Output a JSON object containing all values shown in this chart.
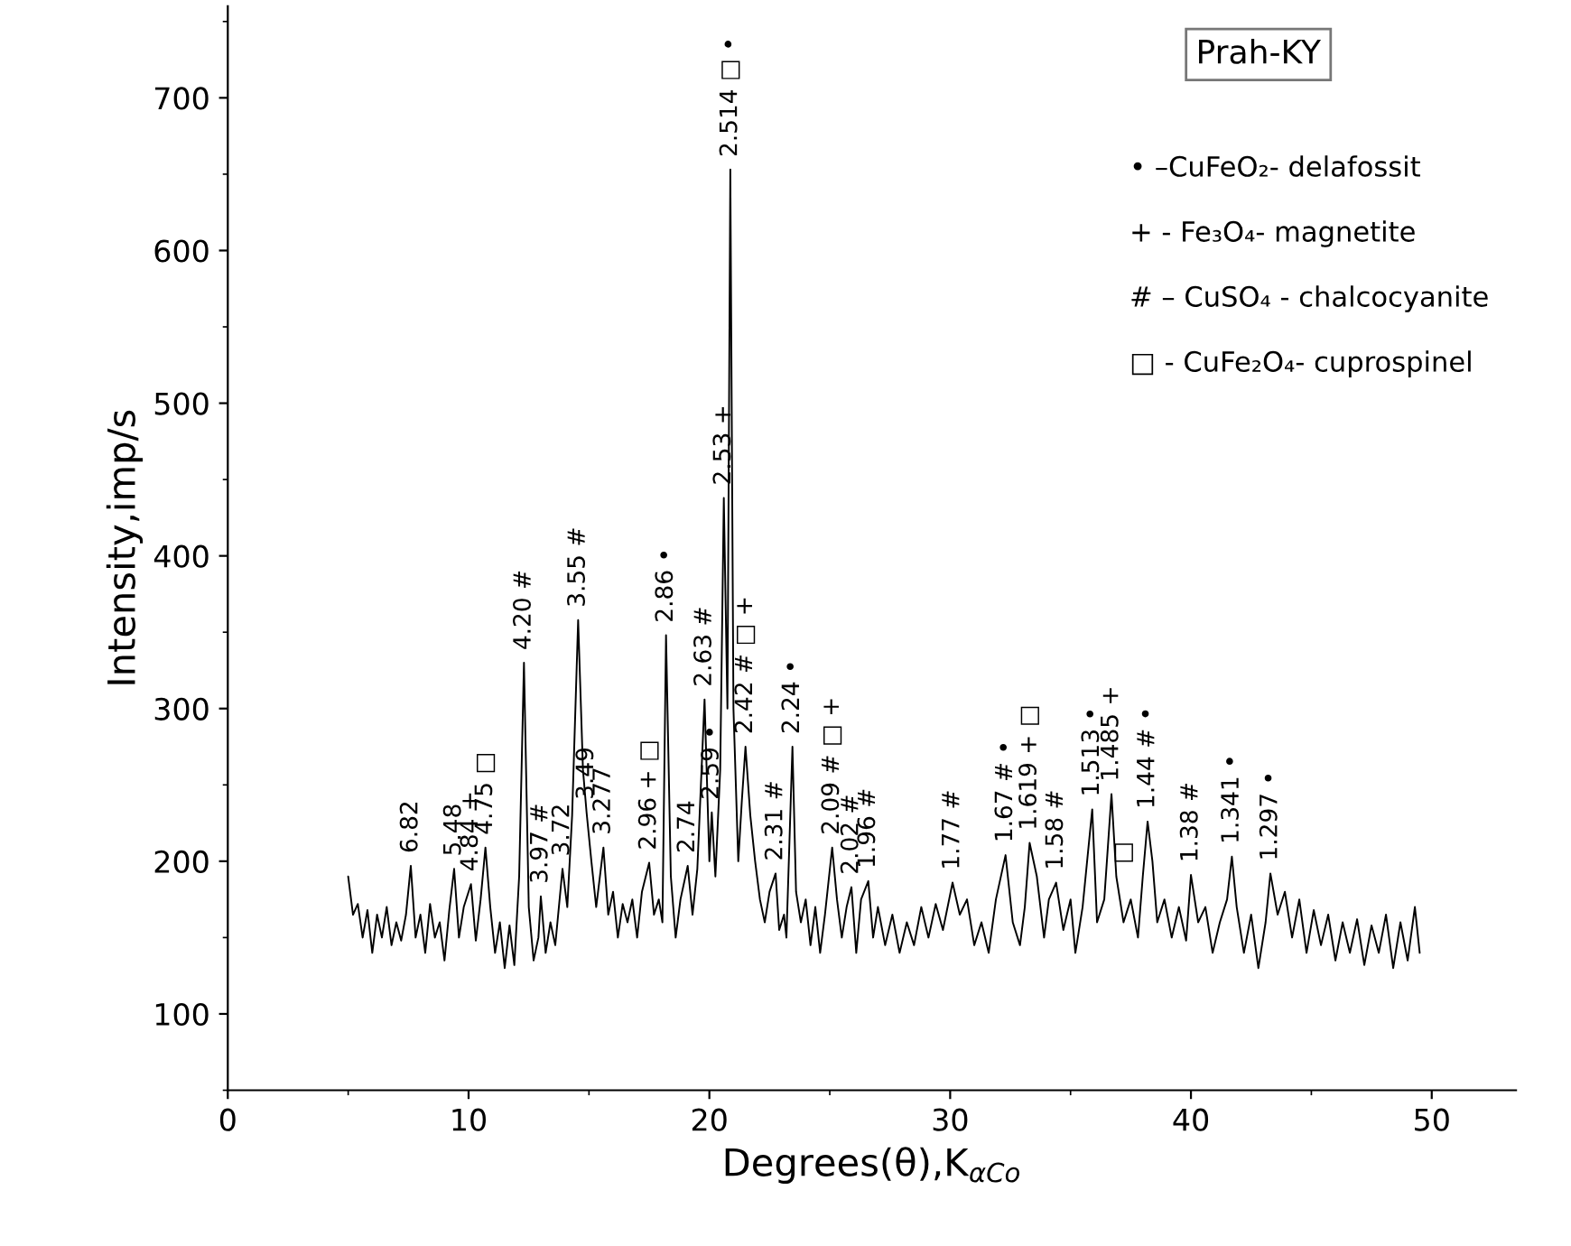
{
  "chart_data": {
    "type": "line",
    "title": "Prah-KY",
    "xlabel": "Degrees(θ),K$_{αCo}$",
    "ylabel": "Intensity,imp/s",
    "xlim": [
      0,
      53.5
    ],
    "ylim": [
      50,
      760
    ],
    "xticks": [
      0,
      10,
      20,
      30,
      40,
      50
    ],
    "yticks": [
      100,
      200,
      300,
      400,
      500,
      600,
      700
    ],
    "grid": false,
    "legend": false,
    "marker": "none",
    "line_style": "solid",
    "series": [
      {
        "color": "#000000",
        "x": [
          5.0,
          5.2,
          5.4,
          5.6,
          5.8,
          6.0,
          6.2,
          6.4,
          6.6,
          6.8,
          7.0,
          7.2,
          7.4,
          7.6,
          7.8,
          8.0,
          8.2,
          8.4,
          8.6,
          8.8,
          9.0,
          9.2,
          9.4,
          9.6,
          9.8,
          10.1,
          10.3,
          10.5,
          10.7,
          10.9,
          11.1,
          11.3,
          11.5,
          11.7,
          11.9,
          12.1,
          12.3,
          12.5,
          12.7,
          12.9,
          13.0,
          13.2,
          13.4,
          13.6,
          13.9,
          14.1,
          14.3,
          14.55,
          14.75,
          14.9,
          15.1,
          15.3,
          15.6,
          15.8,
          16.0,
          16.2,
          16.4,
          16.6,
          16.8,
          17.0,
          17.2,
          17.5,
          17.7,
          17.9,
          18.05,
          18.2,
          18.4,
          18.6,
          18.8,
          19.1,
          19.3,
          19.5,
          19.8,
          20.0,
          20.1,
          20.25,
          20.45,
          20.6,
          20.75,
          20.87,
          21.0,
          21.2,
          21.35,
          21.5,
          21.7,
          21.9,
          22.1,
          22.3,
          22.5,
          22.75,
          22.9,
          23.1,
          23.2,
          23.45,
          23.6,
          23.8,
          24.0,
          24.2,
          24.4,
          24.6,
          24.8,
          25.1,
          25.3,
          25.5,
          25.7,
          25.9,
          26.1,
          26.3,
          26.6,
          26.8,
          27.0,
          27.3,
          27.6,
          27.9,
          28.2,
          28.5,
          28.8,
          29.1,
          29.4,
          29.7,
          30.1,
          30.4,
          30.7,
          31.0,
          31.3,
          31.6,
          31.9,
          32.3,
          32.6,
          32.9,
          33.1,
          33.3,
          33.6,
          33.9,
          34.1,
          34.4,
          34.7,
          35.0,
          35.2,
          35.5,
          35.9,
          36.1,
          36.4,
          36.7,
          36.9,
          37.2,
          37.5,
          37.8,
          38.0,
          38.2,
          38.4,
          38.6,
          38.9,
          39.2,
          39.5,
          39.8,
          40.0,
          40.3,
          40.6,
          40.9,
          41.2,
          41.5,
          41.7,
          41.9,
          42.2,
          42.5,
          42.8,
          43.1,
          43.3,
          43.6,
          43.9,
          44.2,
          44.5,
          44.8,
          45.1,
          45.4,
          45.7,
          46.0,
          46.3,
          46.6,
          46.9,
          47.2,
          47.5,
          47.8,
          48.1,
          48.4,
          48.7,
          49.0,
          49.3,
          49.5
        ],
        "values": [
          190,
          165,
          172,
          150,
          168,
          140,
          165,
          150,
          170,
          145,
          160,
          148,
          165,
          197,
          150,
          165,
          140,
          172,
          150,
          160,
          135,
          168,
          195,
          150,
          170,
          185,
          148,
          175,
          209,
          170,
          140,
          160,
          130,
          158,
          132,
          190,
          330,
          170,
          135,
          150,
          177,
          140,
          160,
          145,
          195,
          170,
          230,
          358,
          260,
          232,
          200,
          170,
          209,
          165,
          180,
          150,
          172,
          160,
          175,
          150,
          180,
          199,
          165,
          175,
          160,
          348,
          190,
          150,
          175,
          197,
          165,
          195,
          306,
          200,
          232,
          190,
          260,
          438,
          300,
          653,
          300,
          200,
          240,
          275,
          230,
          200,
          175,
          160,
          180,
          192,
          155,
          165,
          150,
          275,
          180,
          160,
          175,
          145,
          170,
          140,
          165,
          209,
          175,
          150,
          170,
          183,
          140,
          175,
          187,
          150,
          170,
          145,
          165,
          140,
          160,
          145,
          170,
          150,
          172,
          155,
          186,
          165,
          175,
          145,
          160,
          140,
          175,
          204,
          160,
          145,
          170,
          212,
          190,
          150,
          175,
          186,
          155,
          175,
          140,
          170,
          234,
          160,
          175,
          244,
          190,
          160,
          175,
          150,
          190,
          226,
          200,
          160,
          175,
          150,
          170,
          148,
          191,
          160,
          170,
          140,
          160,
          175,
          203,
          170,
          140,
          165,
          130,
          160,
          192,
          165,
          180,
          150,
          175,
          140,
          168,
          145,
          165,
          135,
          160,
          140,
          162,
          132,
          158,
          140,
          165,
          130,
          160,
          135,
          170,
          140
        ]
      }
    ],
    "annotations": [
      {
        "text": "6.82",
        "x": 7.6,
        "y": 197
      },
      {
        "text": "5.48",
        "x": 9.4,
        "y": 195
      },
      {
        "text": "4.84 +",
        "x": 10.1,
        "y": 185
      },
      {
        "text": "4.75 □",
        "x": 10.7,
        "y": 209
      },
      {
        "text": "4.20 #",
        "x": 12.3,
        "y": 330
      },
      {
        "text": "3.97 #",
        "x": 13.0,
        "y": 177
      },
      {
        "text": "3.72",
        "x": 13.9,
        "y": 195
      },
      {
        "text": "3.55 #",
        "x": 14.55,
        "y": 358
      },
      {
        "text": "3.49",
        "x": 14.9,
        "y": 232
      },
      {
        "text": "3.277",
        "x": 15.6,
        "y": 209
      },
      {
        "text": "2.96 + □",
        "x": 17.5,
        "y": 199
      },
      {
        "text": "2.86 •",
        "x": 18.2,
        "y": 348
      },
      {
        "text": "2.74",
        "x": 19.1,
        "y": 197
      },
      {
        "text": "2.63 #",
        "x": 19.8,
        "y": 306
      },
      {
        "text": "2.59 •",
        "x": 20.1,
        "y": 232
      },
      {
        "text": "2.53 +",
        "x": 20.6,
        "y": 438
      },
      {
        "text": "2.514 □ •",
        "x": 20.87,
        "y": 653
      },
      {
        "text": "2.42 # □ +",
        "x": 21.5,
        "y": 275
      },
      {
        "text": "2.31 #",
        "x": 22.75,
        "y": 192
      },
      {
        "text": "2.24 •",
        "x": 23.45,
        "y": 275
      },
      {
        "text": "2.09 # □ +",
        "x": 25.1,
        "y": 209
      },
      {
        "text": "2.02 #",
        "x": 25.9,
        "y": 183
      },
      {
        "text": "1.96 #",
        "x": 26.6,
        "y": 187
      },
      {
        "text": "1.77 #",
        "x": 30.1,
        "y": 186
      },
      {
        "text": "1.67 # •",
        "x": 32.3,
        "y": 204
      },
      {
        "text": "1.619 + □",
        "x": 33.3,
        "y": 212
      },
      {
        "text": "1.58 #",
        "x": 34.4,
        "y": 186
      },
      {
        "text": "1.513 •",
        "x": 35.9,
        "y": 234
      },
      {
        "text": "1.485 +",
        "x": 36.7,
        "y": 244
      },
      {
        "text": "□",
        "x": 37.2,
        "y": 190
      },
      {
        "text": "1.44 # •",
        "x": 38.2,
        "y": 226
      },
      {
        "text": "1.38 #",
        "x": 40.0,
        "y": 191
      },
      {
        "text": "1.341 •",
        "x": 41.7,
        "y": 203
      },
      {
        "text": "1.297 •",
        "x": 43.3,
        "y": 192
      },
      "• –CuFeO₂- delafossit",
      "+ - Fe₃O₄- magnetite",
      "# – CuSO₄ - chalcocyanite",
      "□ - CuFe₂O₄- cuprospinel"
    ]
  }
}
